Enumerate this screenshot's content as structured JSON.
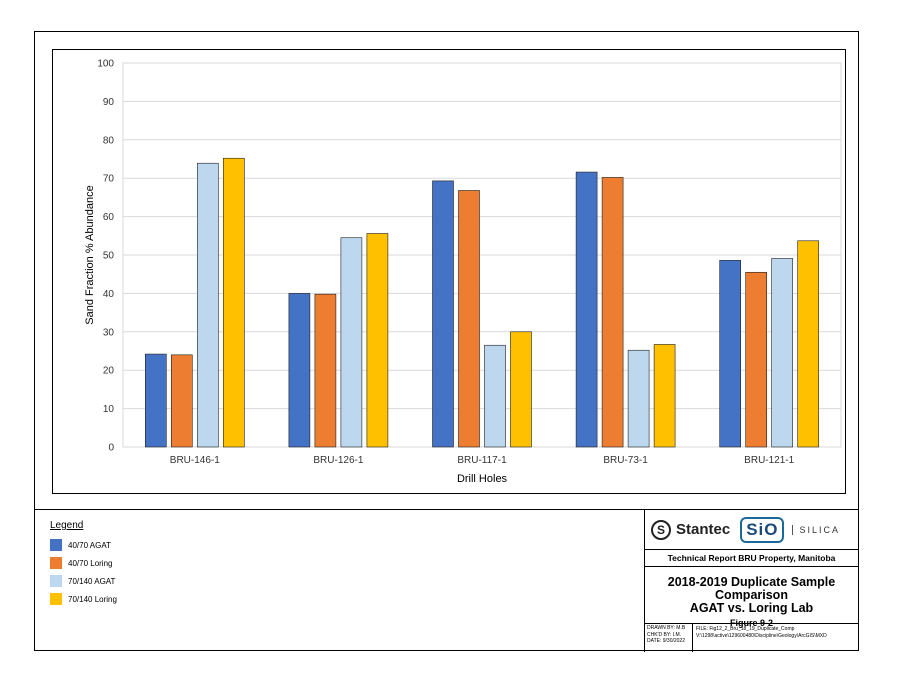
{
  "chart_data": {
    "type": "bar",
    "categories": [
      "BRU-146-1",
      "BRU-126-1",
      "BRU-117-1",
      "BRU-73-1",
      "BRU-121-1"
    ],
    "series": [
      {
        "name": "40/70 AGAT",
        "values": [
          24.2,
          40.0,
          69.3,
          71.6,
          48.6
        ]
      },
      {
        "name": "40/70 Loring",
        "values": [
          24.0,
          39.8,
          66.8,
          70.2,
          45.5
        ]
      },
      {
        "name": "70/140 AGAT",
        "values": [
          73.9,
          54.5,
          26.5,
          25.2,
          49.1
        ]
      },
      {
        "name": "70/140 Loring",
        "values": [
          75.2,
          55.6,
          30.0,
          26.7,
          53.7
        ]
      }
    ],
    "colors": [
      "#4472c4",
      "#ed7d31",
      "#bdd7ee",
      "#ffc000"
    ],
    "xlabel": "Drill Holes",
    "ylabel": "Sand Fraction % Abundance",
    "ylim": [
      0,
      100
    ],
    "yticks": [
      0,
      10,
      20,
      30,
      40,
      50,
      60,
      70,
      80,
      90,
      100
    ],
    "grid": true,
    "legend_placement": "bottom-left"
  },
  "legend": {
    "title": "Legend",
    "items": [
      {
        "label": "40/70 AGAT",
        "color": "#4472c4"
      },
      {
        "label": "40/70 Loring",
        "color": "#ed7d31"
      },
      {
        "label": "70/140 AGAT",
        "color": "#bdd7ee"
      },
      {
        "label": "70/140 Loring",
        "color": "#ffc000"
      }
    ]
  },
  "title_block": {
    "stantec": "Stantec",
    "sio": "SiO",
    "silica": "SILICA",
    "report_title": "Technical Report BRU Property, Manitoba",
    "figure_title_1": "2018-2019 Duplicate Sample",
    "figure_title_2": "Comparison",
    "figure_title_3": "AGAT vs. Loring Lab",
    "figure_number": "Figure 9-2",
    "drawn_by": "DRAWN BY: M.B",
    "checked_by": "CHK'D BY: I.M.",
    "date": "DATE: 9/30/2022",
    "file": "FILE: Fig12_2_Bru_18_19_Duplicate_Comp",
    "path": "V:\\1298\\active\\129600480\\Discipline\\Geology\\ArcGIS\\MXD"
  }
}
